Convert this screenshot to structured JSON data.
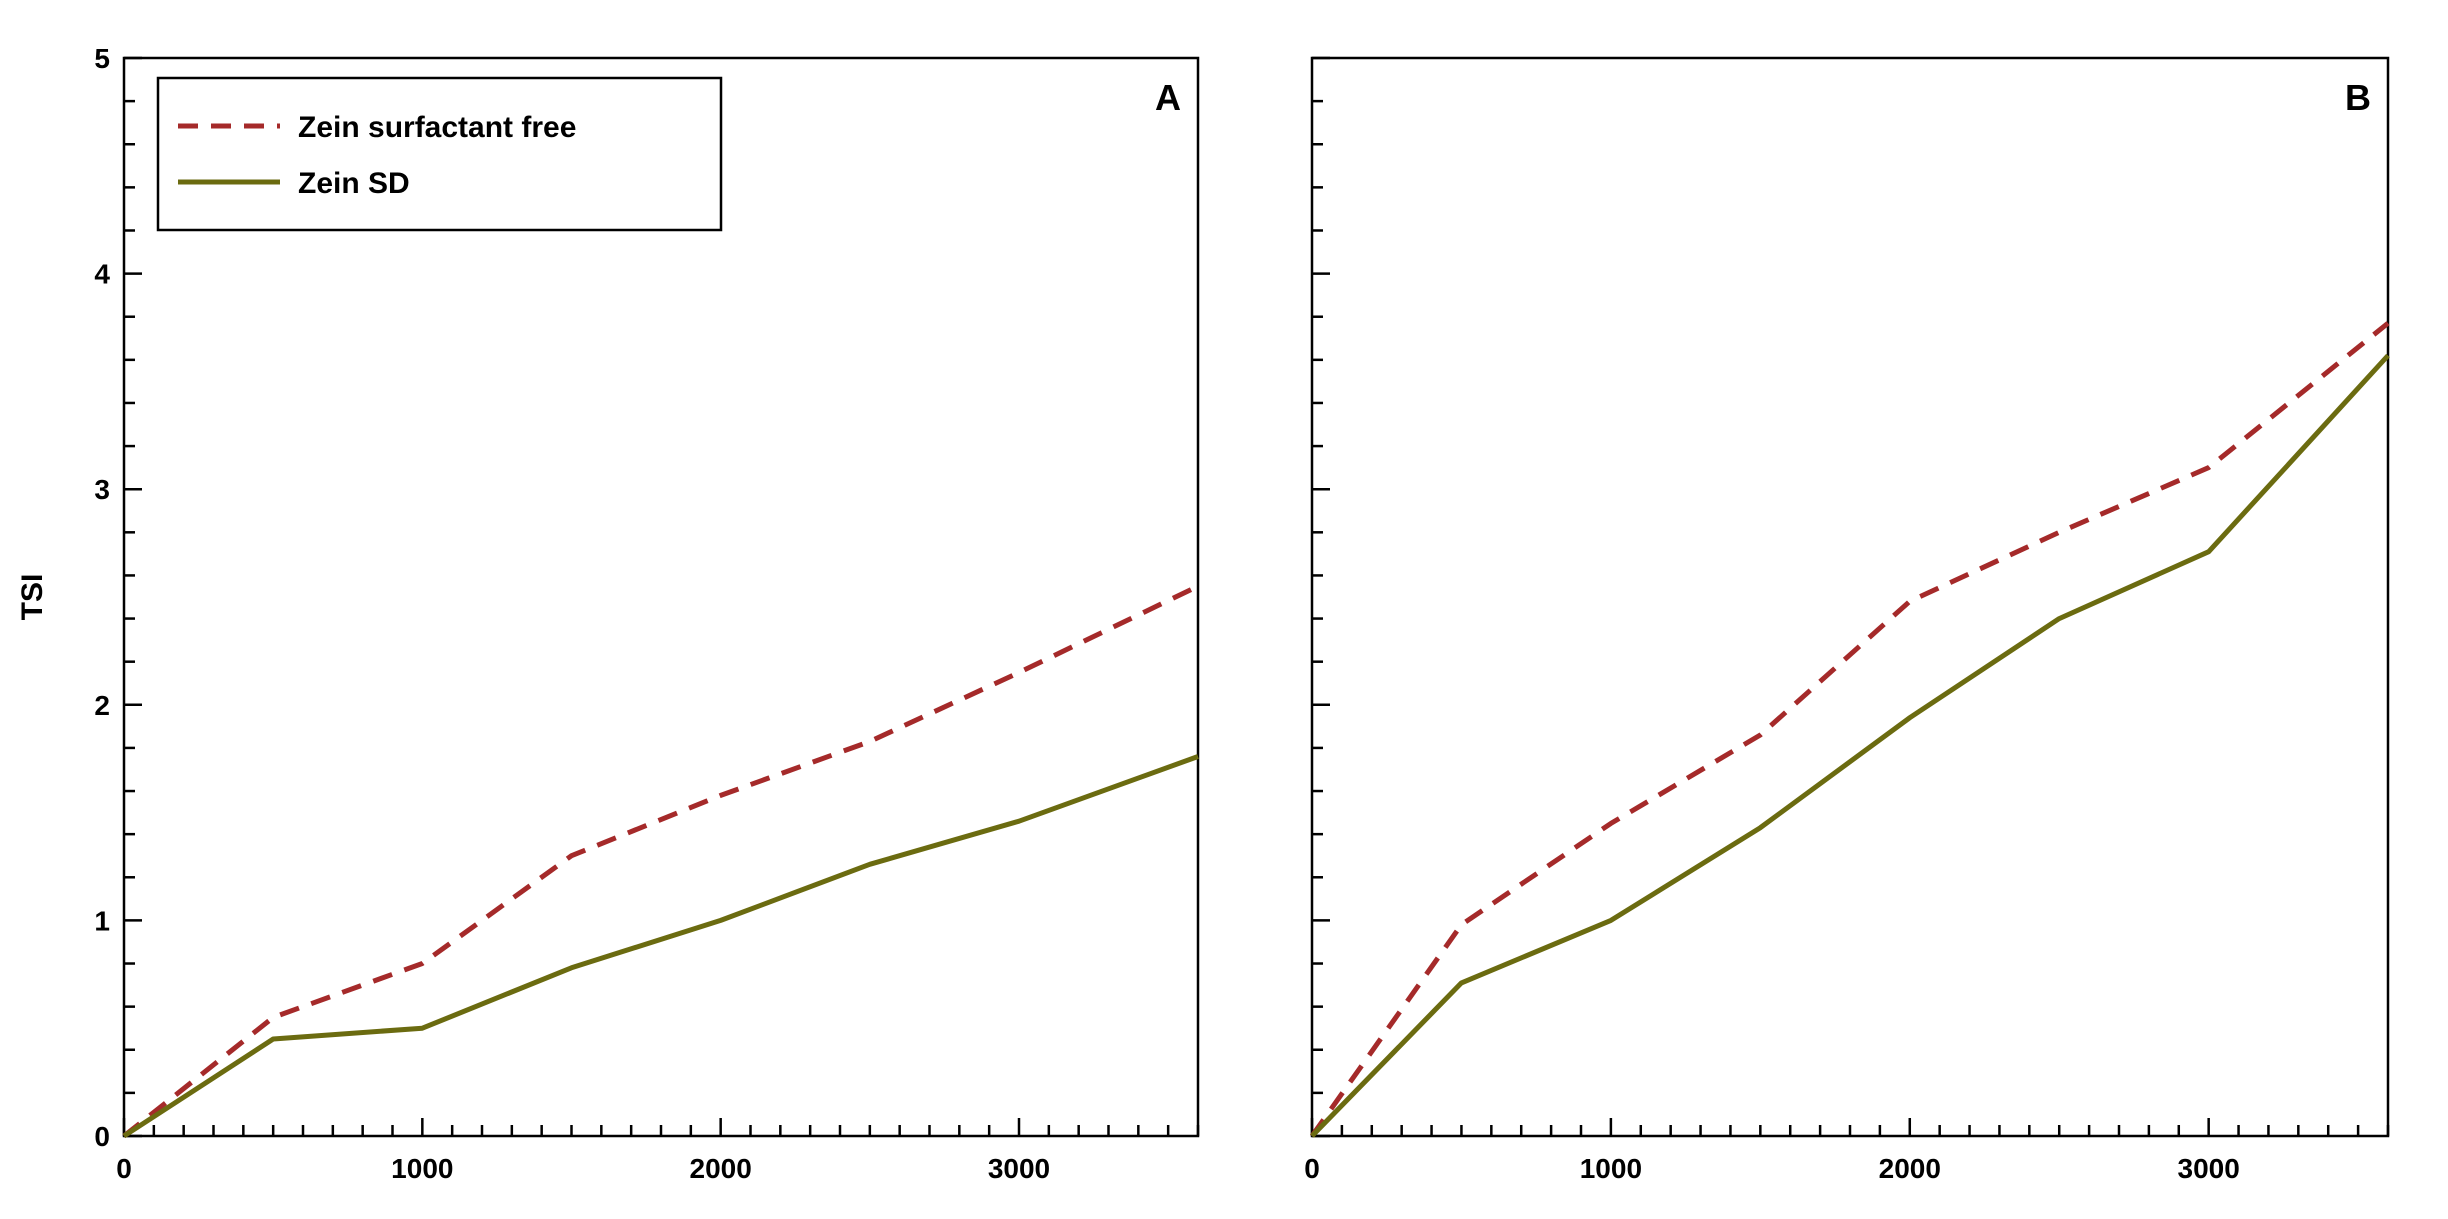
{
  "chart_data": [
    {
      "type": "line",
      "panel_label": "A",
      "ylabel": "TSI",
      "xlabel": "",
      "xlim": [
        0,
        3600
      ],
      "ylim": [
        0,
        5
      ],
      "xticks": [
        "0",
        "1000",
        "2000",
        "3000"
      ],
      "yticks": [
        "0",
        "1",
        "2",
        "3",
        "4",
        "5"
      ],
      "grid": false,
      "legend": "top-left",
      "series": [
        {
          "name": "Zein surfactant free",
          "style": "dashed",
          "color": "#a52a2a",
          "x": [
            0,
            500,
            1000,
            1500,
            2000,
            2500,
            3000,
            3600
          ],
          "y": [
            0,
            0.55,
            0.8,
            1.3,
            1.58,
            1.83,
            2.15,
            2.55
          ]
        },
        {
          "name": "Zein SD",
          "style": "solid",
          "color": "#6b6b10",
          "x": [
            0,
            500,
            1000,
            1500,
            2000,
            2500,
            3000,
            3600
          ],
          "y": [
            0,
            0.45,
            0.5,
            0.78,
            1.0,
            1.26,
            1.46,
            1.76
          ]
        }
      ]
    },
    {
      "type": "line",
      "panel_label": "B",
      "ylabel": "",
      "xlabel": "",
      "xlim": [
        0,
        3600
      ],
      "ylim": [
        0,
        5
      ],
      "xticks": [
        "0",
        "1000",
        "2000",
        "3000"
      ],
      "yticks": [],
      "grid": false,
      "series": [
        {
          "style": "dashed",
          "color": "#a52a2a",
          "x": [
            0,
            500,
            1000,
            1500,
            2000,
            2500,
            3000,
            3600
          ],
          "y": [
            0,
            0.98,
            1.45,
            1.86,
            2.48,
            2.8,
            3.1,
            3.77
          ]
        },
        {
          "style": "solid",
          "color": "#6b6b10",
          "x": [
            0,
            500,
            1000,
            1500,
            2000,
            2500,
            3000,
            3600
          ],
          "y": [
            0,
            0.71,
            1.0,
            1.43,
            1.94,
            2.4,
            2.71,
            3.62
          ]
        }
      ]
    }
  ]
}
